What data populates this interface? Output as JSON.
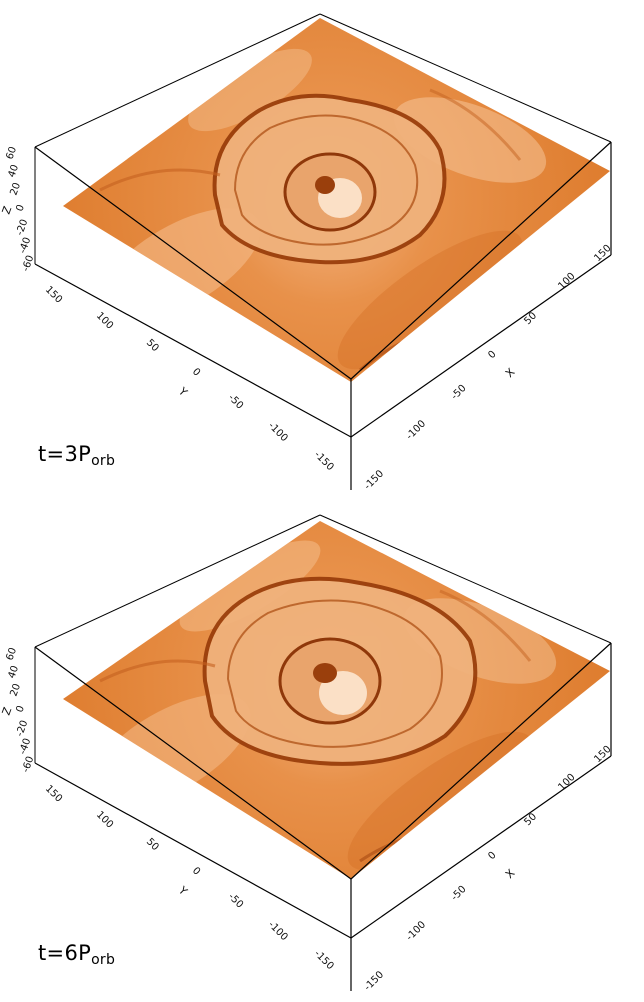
{
  "panels": [
    {
      "id": "top",
      "time_label": {
        "prefix": "t=",
        "value": "3P",
        "subscript": "orb"
      },
      "z_axis": {
        "label": "Z",
        "ticks": [
          "60",
          "40",
          "20",
          "0",
          "-20",
          "-40",
          "-60"
        ]
      },
      "y_axis": {
        "label": "Y",
        "ticks": [
          "150",
          "100",
          "50",
          "0",
          "-50",
          "-100",
          "-150"
        ]
      },
      "x_axis": {
        "label": "X",
        "ticks": [
          "150",
          "100",
          "50",
          "0",
          "-50",
          "-100",
          "-150"
        ]
      }
    },
    {
      "id": "bottom",
      "time_label": {
        "prefix": "t=",
        "value": "6P",
        "subscript": "orb"
      },
      "z_axis": {
        "label": "Z",
        "ticks": [
          "60",
          "40",
          "20",
          "0",
          "-20",
          "-40",
          "-60"
        ]
      },
      "y_axis": {
        "label": "Y",
        "ticks": [
          "150",
          "100",
          "50",
          "0",
          "-50",
          "-100",
          "-150"
        ]
      },
      "x_axis": {
        "label": "X",
        "ticks": [
          "150",
          "100",
          "50",
          "0",
          "-50",
          "-100",
          "-150"
        ]
      }
    }
  ],
  "colors": {
    "slice_base": "#e07f2e",
    "slice_light": "#f6c69a",
    "slice_dark": "#a94a12",
    "box_edge": "#000000"
  }
}
